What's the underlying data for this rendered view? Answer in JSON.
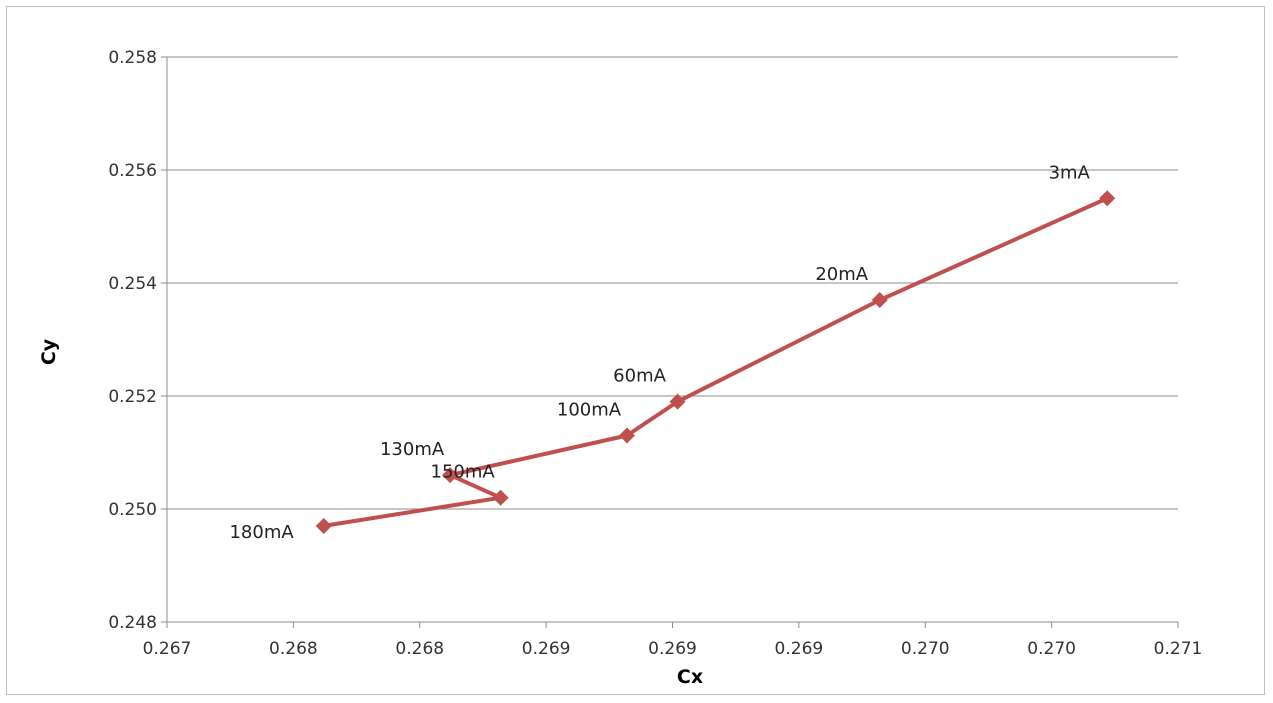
{
  "chart_data": {
    "type": "line",
    "title": "",
    "xlabel": "Cx",
    "ylabel": "Cy",
    "xlim": [
      0.267,
      0.271
    ],
    "ylim": [
      0.248,
      0.258
    ],
    "x_tick_values": [
      0.267,
      0.2675,
      0.268,
      0.2685,
      0.269,
      0.2695,
      0.27,
      0.2705,
      0.271
    ],
    "x_tick_labels": [
      "0.267",
      "0.268",
      "0.268",
      "0.269",
      "0.269",
      "0.269",
      "0.270",
      "0.270",
      "0.271"
    ],
    "y_tick_values": [
      0.248,
      0.25,
      0.252,
      0.254,
      0.256,
      0.258
    ],
    "y_tick_labels": [
      "0.248",
      "0.250",
      "0.252",
      "0.254",
      "0.256",
      "0.258"
    ],
    "grid": "horizontal",
    "legend": "none",
    "series": [
      {
        "color": "#c0504d",
        "marker": "diamond",
        "points": [
          {
            "x": 0.26762,
            "y": 0.2497,
            "label": "180mA"
          },
          {
            "x": 0.26832,
            "y": 0.2502,
            "label": "150mA"
          },
          {
            "x": 0.26812,
            "y": 0.2506,
            "label": "130mA"
          },
          {
            "x": 0.26882,
            "y": 0.2513,
            "label": "100mA"
          },
          {
            "x": 0.26902,
            "y": 0.2519,
            "label": "60mA"
          },
          {
            "x": 0.26982,
            "y": 0.2537,
            "label": "20mA"
          },
          {
            "x": 0.27072,
            "y": 0.2555,
            "label": "3mA"
          }
        ]
      }
    ]
  }
}
